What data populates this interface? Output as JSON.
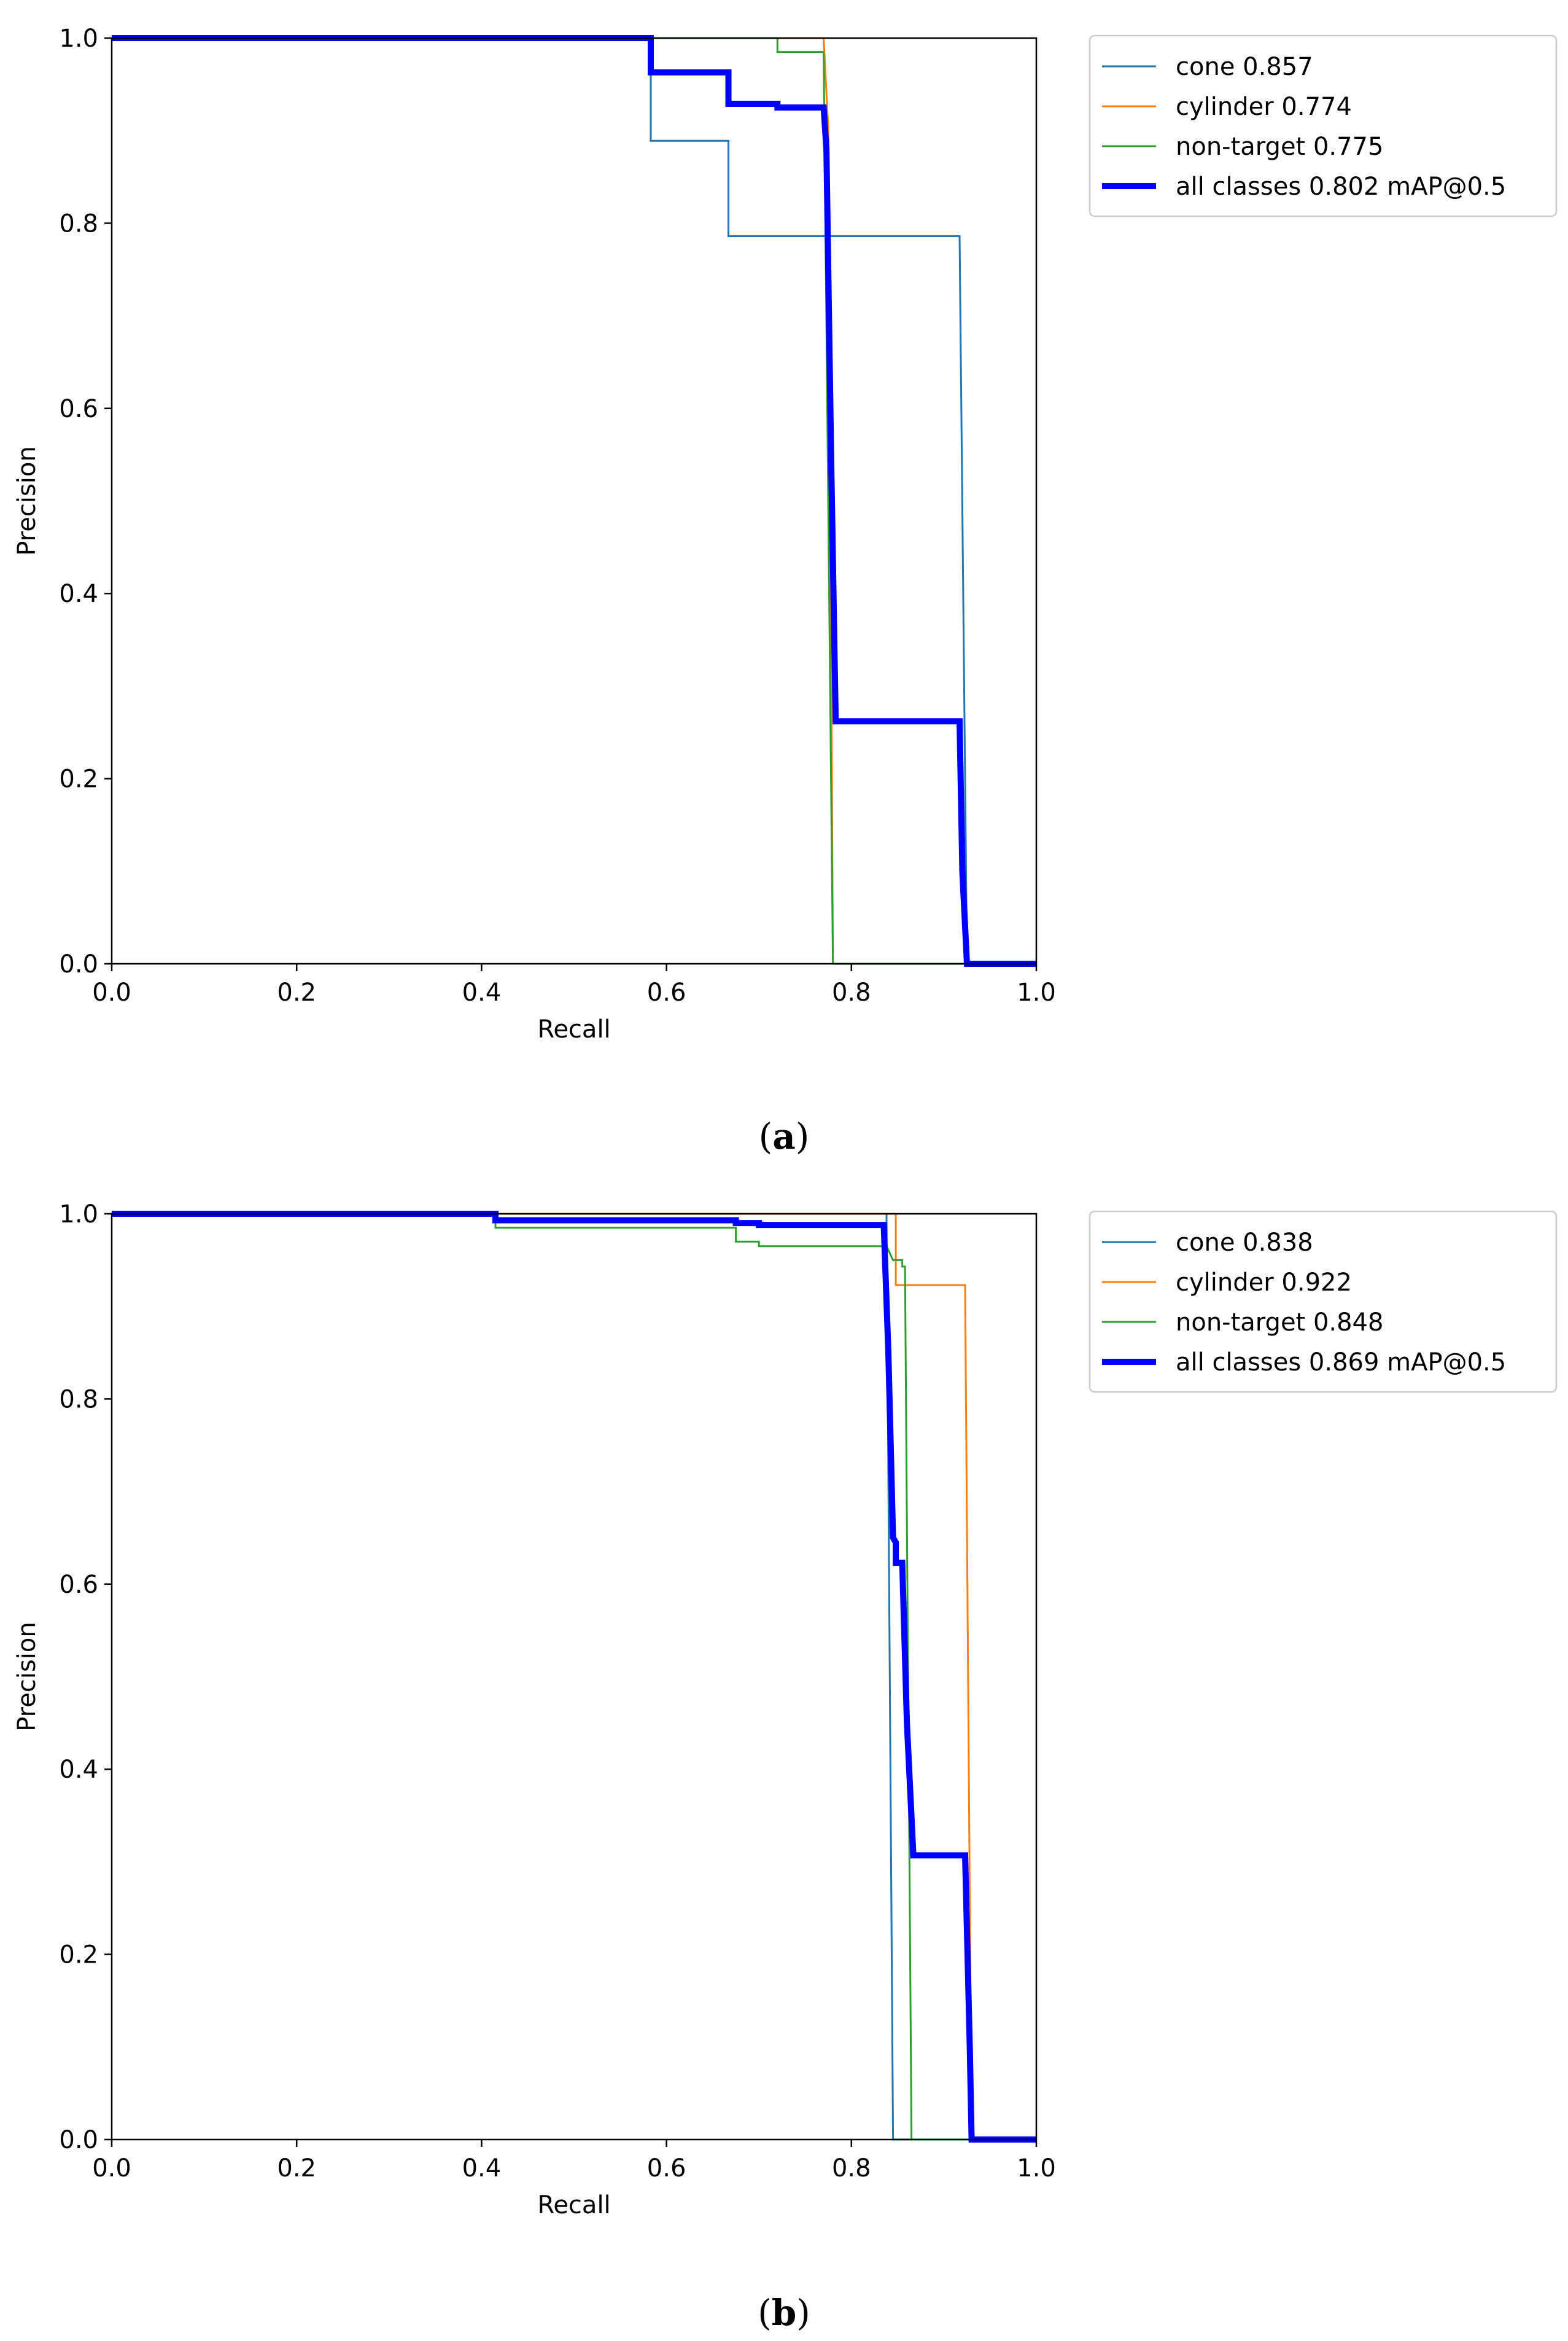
{
  "chart_data": [
    {
      "type": "line",
      "panel": "a",
      "caption": {
        "open": "(",
        "letter": "a",
        "close": ")"
      },
      "xlabel": "Recall",
      "ylabel": "Precision",
      "xlim": [
        0,
        1
      ],
      "ylim": [
        0,
        1
      ],
      "x_ticks": [
        "0.0",
        "0.2",
        "0.4",
        "0.6",
        "0.8",
        "1.0"
      ],
      "y_ticks": [
        "0.0",
        "0.2",
        "0.4",
        "0.6",
        "0.8",
        "1.0"
      ],
      "grid": false,
      "legend_position": "outside-right-top",
      "series": [
        {
          "name": "cone",
          "value": "0.857",
          "label": "cone 0.857",
          "color": "#1f77b4",
          "width": "thin",
          "points": [
            [
              0,
              1
            ],
            [
              0.583,
              1
            ],
            [
              0.583,
              0.889
            ],
            [
              0.667,
              0.889
            ],
            [
              0.667,
              0.786
            ],
            [
              0.917,
              0.786
            ],
            [
              0.925,
              0
            ],
            [
              1,
              0
            ]
          ]
        },
        {
          "name": "cylinder",
          "value": "0.774",
          "label": "cylinder 0.774",
          "color": "#ff7f0e",
          "width": "thin",
          "points": [
            [
              0,
              1
            ],
            [
              0.77,
              1
            ],
            [
              0.775,
              0.9
            ],
            [
              0.78,
              0
            ],
            [
              1,
              0
            ]
          ]
        },
        {
          "name": "non-target",
          "value": "0.775",
          "label": "non-target 0.775",
          "color": "#2ca02c",
          "width": "thin",
          "points": [
            [
              0,
              1
            ],
            [
              0.72,
              1
            ],
            [
              0.72,
              0.985
            ],
            [
              0.77,
              0.985
            ],
            [
              0.78,
              0
            ],
            [
              1,
              0
            ]
          ]
        },
        {
          "name": "all classes",
          "value": "0.802 mAP@0.5",
          "label": "all classes 0.802 mAP@0.5",
          "color": "#0000ff",
          "width": "thick",
          "points": [
            [
              0,
              1
            ],
            [
              0.583,
              1
            ],
            [
              0.583,
              0.963
            ],
            [
              0.667,
              0.963
            ],
            [
              0.667,
              0.929
            ],
            [
              0.72,
              0.929
            ],
            [
              0.72,
              0.925
            ],
            [
              0.77,
              0.925
            ],
            [
              0.773,
              0.88
            ],
            [
              0.778,
              0.55
            ],
            [
              0.783,
              0.262
            ],
            [
              0.917,
              0.262
            ],
            [
              0.92,
              0.1
            ],
            [
              0.925,
              0
            ],
            [
              1,
              0
            ]
          ]
        }
      ]
    },
    {
      "type": "line",
      "panel": "b",
      "caption": {
        "open": "(",
        "letter": "b",
        "close": ")"
      },
      "xlabel": "Recall",
      "ylabel": "Precision",
      "xlim": [
        0,
        1
      ],
      "ylim": [
        0,
        1
      ],
      "x_ticks": [
        "0.0",
        "0.2",
        "0.4",
        "0.6",
        "0.8",
        "1.0"
      ],
      "y_ticks": [
        "0.0",
        "0.2",
        "0.4",
        "0.6",
        "0.8",
        "1.0"
      ],
      "grid": false,
      "legend_position": "outside-right-top",
      "series": [
        {
          "name": "cone",
          "value": "0.838",
          "label": "cone 0.838",
          "color": "#1f77b4",
          "width": "thin",
          "points": [
            [
              0,
              1
            ],
            [
              0.838,
              1
            ],
            [
              0.845,
              0
            ],
            [
              1,
              0
            ]
          ]
        },
        {
          "name": "cylinder",
          "value": "0.922",
          "label": "cylinder 0.922",
          "color": "#ff7f0e",
          "width": "thin",
          "points": [
            [
              0,
              1
            ],
            [
              0.848,
              1
            ],
            [
              0.848,
              0.923
            ],
            [
              0.923,
              0.923
            ],
            [
              0.93,
              0
            ],
            [
              1,
              0
            ]
          ]
        },
        {
          "name": "non-target",
          "value": "0.848",
          "label": "non-target 0.848",
          "color": "#2ca02c",
          "width": "thin",
          "points": [
            [
              0,
              1
            ],
            [
              0.415,
              1
            ],
            [
              0.415,
              0.985
            ],
            [
              0.675,
              0.985
            ],
            [
              0.675,
              0.97
            ],
            [
              0.7,
              0.97
            ],
            [
              0.7,
              0.965
            ],
            [
              0.838,
              0.965
            ],
            [
              0.845,
              0.95
            ],
            [
              0.855,
              0.95
            ],
            [
              0.855,
              0.943
            ],
            [
              0.858,
              0.943
            ],
            [
              0.865,
              0
            ],
            [
              1,
              0
            ]
          ]
        },
        {
          "name": "all classes",
          "value": "0.869 mAP@0.5",
          "label": "all classes 0.869 mAP@0.5",
          "color": "#0000ff",
          "width": "thick",
          "points": [
            [
              0,
              1
            ],
            [
              0.415,
              1
            ],
            [
              0.415,
              0.993
            ],
            [
              0.675,
              0.993
            ],
            [
              0.675,
              0.99
            ],
            [
              0.7,
              0.99
            ],
            [
              0.7,
              0.988
            ],
            [
              0.835,
              0.988
            ],
            [
              0.84,
              0.85
            ],
            [
              0.845,
              0.65
            ],
            [
              0.848,
              0.645
            ],
            [
              0.848,
              0.623
            ],
            [
              0.855,
              0.623
            ],
            [
              0.86,
              0.45
            ],
            [
              0.867,
              0.307
            ],
            [
              0.923,
              0.307
            ],
            [
              0.928,
              0.1
            ],
            [
              0.93,
              0
            ],
            [
              1,
              0
            ]
          ]
        }
      ]
    }
  ]
}
